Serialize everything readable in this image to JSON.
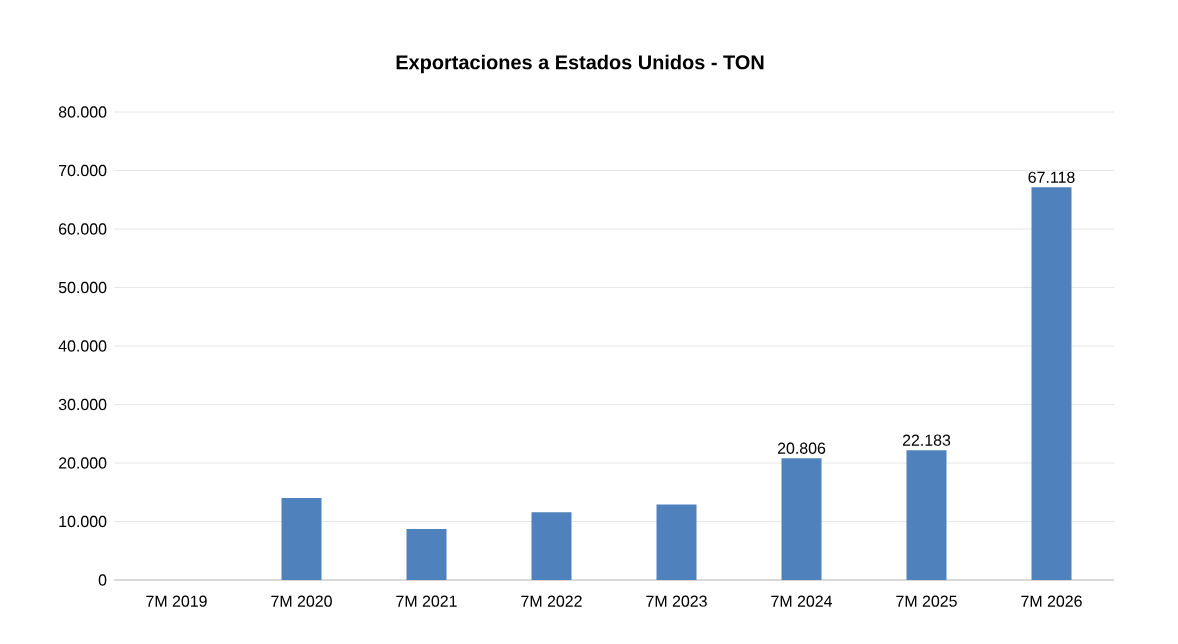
{
  "chart_data": {
    "type": "bar",
    "title": "Exportaciones a Estados Unidos - TON",
    "categories": [
      "7M 2019",
      "7M 2020",
      "7M 2021",
      "7M 2022",
      "7M 2023",
      "7M 2024",
      "7M 2025",
      "7M 2026"
    ],
    "values": [
      0,
      14000,
      8700,
      11600,
      12900,
      20806,
      22183,
      67118
    ],
    "value_labels": [
      null,
      null,
      null,
      null,
      null,
      "20.806",
      "22.183",
      "67.118"
    ],
    "color": "#4f81bd",
    "ylim": [
      0,
      80000
    ],
    "yticks": [
      0,
      {
        "value": 10000,
        "label": "10.000"
      },
      {
        "value": 20000,
        "label": "20.000"
      },
      {
        "value": 30000,
        "label": "30.000"
      },
      {
        "value": 40000,
        "label": "40.000"
      },
      {
        "value": 50000,
        "label": "50.000"
      },
      {
        "value": 60000,
        "label": "60.000"
      },
      {
        "value": 70000,
        "label": "70.000"
      },
      {
        "value": 80000,
        "label": "80.000"
      }
    ],
    "grid": "y"
  }
}
